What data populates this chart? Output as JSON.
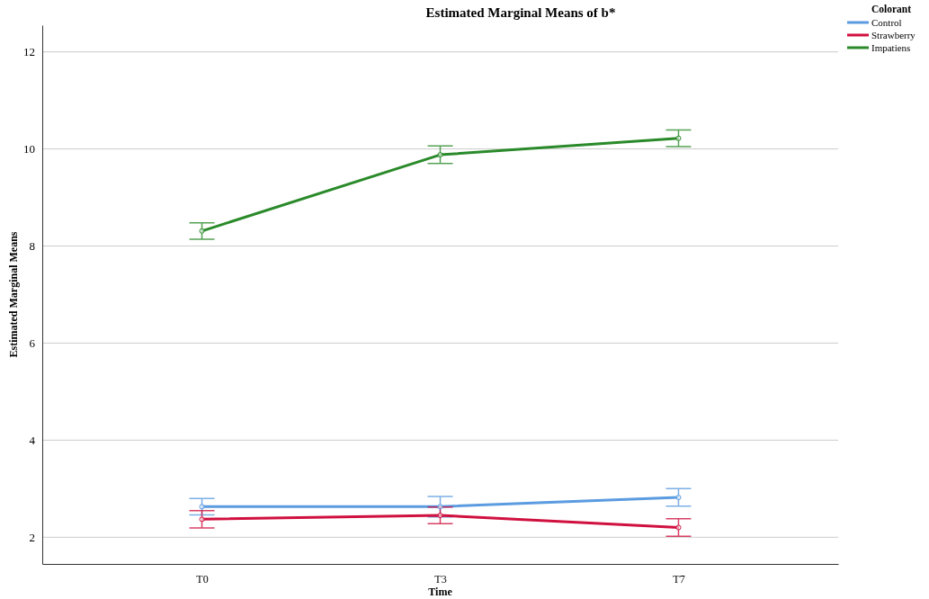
{
  "chart_data": {
    "type": "line",
    "title": "Estimated Marginal Means of b*",
    "xlabel": "Time",
    "ylabel": "Estimated Marginal Means",
    "legend_title": "Colorant",
    "categories": [
      "T0",
      "T3",
      "T7"
    ],
    "series": [
      {
        "name": "Control",
        "color": "#5b9be0",
        "values": [
          2.63,
          2.63,
          2.82
        ],
        "errors": [
          0.17,
          0.21,
          0.18
        ]
      },
      {
        "name": "Strawberry",
        "color": "#d0103f",
        "values": [
          2.37,
          2.45,
          2.2
        ],
        "errors": [
          0.18,
          0.17,
          0.18
        ]
      },
      {
        "name": "Impatiens",
        "color": "#2a8a2a",
        "values": [
          8.31,
          9.88,
          10.22
        ],
        "errors": [
          0.17,
          0.18,
          0.17
        ]
      }
    ],
    "ylim": [
      1.45,
      12.55
    ],
    "yticks": [
      2,
      4,
      6,
      8,
      10,
      12
    ],
    "grid": "y",
    "legend": "top right",
    "marker": "circle",
    "line_style": "solid"
  }
}
